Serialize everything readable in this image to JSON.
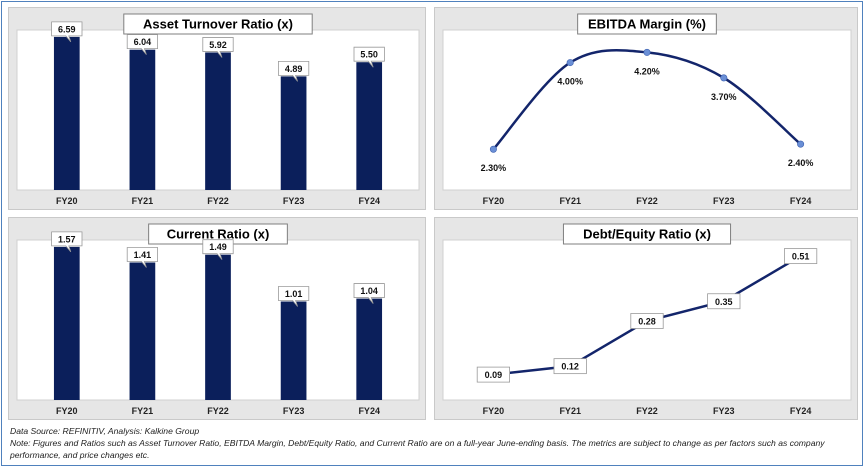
{
  "chart_data": [
    {
      "id": "asset_turnover",
      "type": "bar",
      "title": "Asset Turnover Ratio (x)",
      "categories": [
        "FY20",
        "FY21",
        "FY22",
        "FY23",
        "FY24"
      ],
      "values": [
        6.59,
        6.04,
        5.92,
        4.89,
        5.5
      ],
      "labels": [
        "6.59",
        "6.04",
        "5.92",
        "4.89",
        "5.50"
      ],
      "ylim": [
        0,
        6.8
      ],
      "grid": false,
      "color": "#0b1f5b"
    },
    {
      "id": "ebitda_margin",
      "type": "line",
      "title": "EBITDA Margin (%)",
      "categories": [
        "FY20",
        "FY21",
        "FY22",
        "FY23",
        "FY24"
      ],
      "values": [
        2.3,
        4.0,
        4.2,
        3.7,
        2.4
      ],
      "labels": [
        "2.30%",
        "4.00%",
        "4.20%",
        "3.70%",
        "2.40%"
      ],
      "ylim": [
        1.5,
        4.6
      ],
      "smooth": true,
      "grid": false,
      "color": "#13256b"
    },
    {
      "id": "current_ratio",
      "type": "bar",
      "title": "Current Ratio (x)",
      "categories": [
        "FY20",
        "FY21",
        "FY22",
        "FY23",
        "FY24"
      ],
      "values": [
        1.57,
        1.41,
        1.49,
        1.01,
        1.04
      ],
      "labels": [
        "1.57",
        "1.41",
        "1.49",
        "1.01",
        "1.04"
      ],
      "ylim": [
        0,
        1.62
      ],
      "grid": false,
      "color": "#0b1f5b"
    },
    {
      "id": "debt_equity",
      "type": "line",
      "title": "Debt/Equity Ratio (x)",
      "categories": [
        "FY20",
        "FY21",
        "FY22",
        "FY23",
        "FY24"
      ],
      "values": [
        0.09,
        0.12,
        0.28,
        0.35,
        0.51
      ],
      "labels": [
        "0.09",
        "0.12",
        "0.28",
        "0.35",
        "0.51"
      ],
      "ylim": [
        0.0,
        0.56
      ],
      "smooth": false,
      "grid": false,
      "color": "#13256b"
    }
  ],
  "footer": {
    "source": "Data Source: REFINITIV, Analysis: Kalkine Group",
    "note": "Note: Figures and Ratios such as Asset Turnover Ratio, EBITDA Margin, Debt/Equity Ratio, and Current Ratio  are on a full-year June-ending basis. The metrics are subject to change as per factors such as company performance, and price changes etc."
  }
}
